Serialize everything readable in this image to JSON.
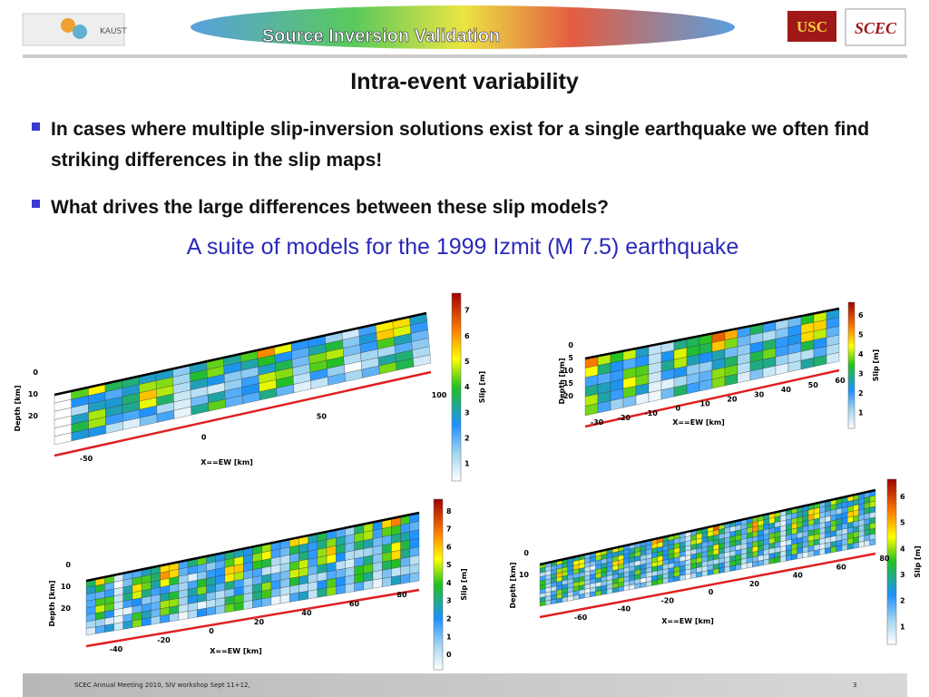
{
  "header": {
    "left_logo": "KAUST",
    "banner": "Source Inversion Validation",
    "usc": "USC",
    "scec": "SCEC"
  },
  "title": "Intra-event variability",
  "bullets": [
    "In cases where multiple slip-inversion solutions exist for a single earthquake we often find striking differences in the slip maps!",
    "What drives the large differences between these slip models?"
  ],
  "subtitle": "A suite of models for the 1999 Izmit (M 7.5) earthquake",
  "panels": [
    {
      "x_label": "X==EW [km]",
      "y_label": "Depth [km]",
      "colorbar_label": "Slip [m]",
      "x_ticks": [
        -50,
        0,
        50,
        100
      ],
      "depth_ticks": [
        0,
        10,
        20
      ],
      "colorbar_ticks": [
        1,
        2,
        3,
        4,
        5,
        6,
        7
      ]
    },
    {
      "x_label": "X==EW [km]",
      "y_label": "Depth [km]",
      "colorbar_label": "Slip [m]",
      "x_ticks": [
        -30,
        -20,
        -10,
        0,
        10,
        20,
        30,
        40,
        50,
        60
      ],
      "depth_ticks": [
        0,
        5,
        10,
        15,
        20
      ],
      "colorbar_ticks": [
        1,
        2,
        3,
        4,
        5,
        6
      ]
    },
    {
      "x_label": "X==EW [km]",
      "y_label": "Depth [km]",
      "colorbar_label": "Slip [m]",
      "x_ticks": [
        -40,
        -20,
        0,
        20,
        40,
        60,
        80
      ],
      "depth_ticks": [
        0,
        10,
        20
      ],
      "colorbar_ticks": [
        0,
        1,
        2,
        3,
        4,
        5,
        6,
        7,
        8
      ]
    },
    {
      "x_label": "X==EW [km]",
      "y_label": "Depth [km]",
      "colorbar_label": "Slip [m]",
      "x_ticks": [
        -60,
        -40,
        -20,
        0,
        20,
        40,
        60,
        80
      ],
      "depth_ticks": [
        0,
        10
      ],
      "colorbar_ticks": [
        1,
        2,
        3,
        4,
        5,
        6
      ]
    }
  ],
  "footer": {
    "text": "SCEC Annual Meeting 2010, SIV workshop  Sept 11+12,",
    "page": "3"
  }
}
